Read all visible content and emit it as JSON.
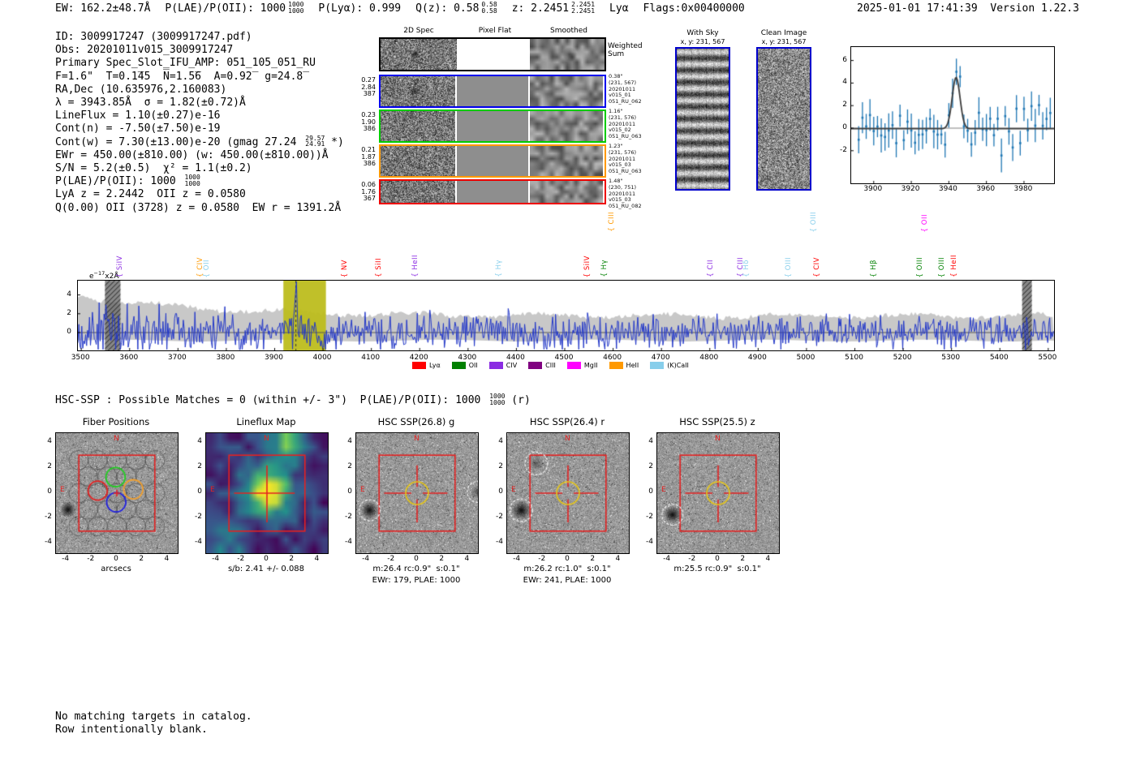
{
  "header": {
    "left_segments": [
      {
        "t": "EW: 162.2±48.7Å"
      },
      {
        "t": "P(LAE)/P(OII): 1000",
        "frac": [
          "1000",
          "1000"
        ]
      },
      {
        "t": "P(Lyα): 0.999"
      },
      {
        "t": "Q(z): 0.58",
        "frac": [
          "0.58",
          "0.58"
        ]
      },
      {
        "t": "z: 2.2451",
        "frac": [
          "2.2451",
          "2.2451"
        ]
      },
      {
        "t": "Lyα"
      },
      {
        "t": "Flags:0x00400000"
      }
    ],
    "datetime": "2025-01-01 17:41:39",
    "version": "Version 1.22.3"
  },
  "info_lines": [
    {
      "text": "ID: 3009917247 (3009917247.pdf)"
    },
    {
      "text": "Obs: 20201011v015_3009917247"
    },
    {
      "text": "Primary Spec_Slot_IFU_AMP: 051_105_051_RU"
    },
    {
      "text": "F=1.6\"  T=0.1̅45  N̅=1.5̅6  A=0.92̅  g=24.8̅"
    },
    {
      "text": "RA,Dec (10.635976,2.160083)"
    },
    {
      "text": "λ = 3943.85Å  σ = 1.82(±0.72)Å"
    },
    {
      "text": "LineFlux = 1.10(±0.27)e-16"
    },
    {
      "text": "Cont(n) = -7.50(±7.50)e-19"
    },
    {
      "pre": "Cont(w) = 7.30(±13.00)e-20 (gmag 27.24 ",
      "hi": "29.57",
      "lo": "24.91",
      "post": " *)"
    },
    {
      "text": "EWr = 450.00(±810.00) (w: 450.00(±810.00))Å"
    },
    {
      "text": "S/N = 5.2(±0.5)  χ² = 1.1(±0.2)"
    },
    {
      "pre": "P(LAE)/P(OII): 1000 ",
      "hi": "1000",
      "lo": "1000",
      "post": ""
    },
    {
      "text": "LyA z = 2.2442  OII z = 0.0580"
    },
    {
      "text": "Q(0.00) OII (3728) z = 0.0580  EW r = 1391.2Å"
    }
  ],
  "spec2d": {
    "col_headers": [
      "2D Spec",
      "Pixel Flat",
      "Smoothed"
    ],
    "weighted_label": [
      "Weighted",
      "Sum"
    ],
    "rows": [
      {
        "border": "#000000",
        "left": [],
        "right": []
      },
      {
        "border": "#0000ee",
        "left": [
          "0.27",
          "2.84",
          "387"
        ],
        "right": [
          "0.38\"",
          "(231, 567)",
          "20201011",
          "v015_01",
          "051_RU_062"
        ]
      },
      {
        "border": "#00cc00",
        "left": [
          "0.23",
          "1.90",
          "386"
        ],
        "right": [
          "1.16\"",
          "(231, 576)",
          "20201011",
          "v015_02",
          "051_RU_063"
        ]
      },
      {
        "border": "#ff9900",
        "left": [
          "0.21",
          "1.87",
          "386"
        ],
        "right": [
          "1.23\"",
          "(231, 576)",
          "20201011",
          "v015_03",
          "051_RU_063"
        ]
      },
      {
        "border": "#ee0000",
        "left": [
          "0.06",
          "1.76",
          "367"
        ],
        "right": [
          "1.48\"",
          "(230, 751)",
          "20201011",
          "v015_03",
          "051_RU_082"
        ]
      }
    ]
  },
  "sky_panels": {
    "with_sky": {
      "title": "With Sky",
      "coords": "x, y: 231, 567"
    },
    "clean": {
      "title": "Clean Image",
      "coords": "x, y: 231, 567"
    }
  },
  "chart_data": [
    {
      "id": "zoom_spectrum",
      "type": "line",
      "title": "",
      "ylabel": {
        "prefix": "e",
        "exp": "−17",
        "suffix": "x2Å"
      },
      "xlim": [
        3888,
        3996
      ],
      "ylim": [
        -4.9,
        7.2
      ],
      "x_ticks": [
        3900,
        3920,
        3940,
        3960,
        3980
      ],
      "y_ticks": [
        6,
        4,
        2,
        0,
        -2
      ],
      "grid": false,
      "series": [
        {
          "name": "flux_errorbar",
          "color": "#1f77b4",
          "note": "noisy flux points ±1σ error bars, baseline ~0, emission spike ~5.0 at 3944"
        },
        {
          "name": "gaussian_fit",
          "color": "#3c3c3c",
          "center": 3943.85,
          "sigma": 1.82,
          "peak": 4.55
        }
      ]
    },
    {
      "id": "full_spectrum",
      "type": "line",
      "title": "",
      "ylabel": {
        "prefix": "e",
        "exp": "−17",
        "suffix": "x2Å"
      },
      "xlim": [
        3493,
        5512
      ],
      "ylim": [
        -1.9,
        5.5
      ],
      "x_ticks": [
        3500,
        3600,
        3700,
        3800,
        3900,
        4000,
        4100,
        4200,
        4300,
        4400,
        4500,
        4600,
        4700,
        4800,
        4900,
        5000,
        5100,
        5200,
        5300,
        5400,
        5500
      ],
      "y_ticks": [
        4,
        2,
        0
      ],
      "emission_line_wavelength": 3943.85,
      "highlight_band": [
        3918,
        4006
      ],
      "masked_bands": [
        [
          3549,
          3581
        ],
        [
          5446,
          5466
        ]
      ],
      "series": [
        {
          "name": "flux",
          "color": "#2338c8",
          "note": "noisy blue spectrum, ±2 envelope, spike to ~5 at 3943.85"
        },
        {
          "name": "noise_envelope",
          "color": "#c8c8c8",
          "note": "gray error envelope, ~4 at 3500 declining to ~1.8"
        }
      ],
      "legend": [
        {
          "label": "Lyα",
          "color": "#ff0000"
        },
        {
          "label": "OII",
          "color": "#008000"
        },
        {
          "label": "CIV",
          "color": "#8a2be2"
        },
        {
          "label": "CIII",
          "color": "#800080"
        },
        {
          "label": "MgII",
          "color": "#ff00ff"
        },
        {
          "label": "HeII",
          "color": "#ff9900"
        },
        {
          "label": "(K)CaII",
          "color": "#87ceeb"
        }
      ],
      "line_labels": [
        {
          "label": "SiIV",
          "color": "#8a2be2",
          "wavelength": 3583,
          "row": 0
        },
        {
          "label": "CIV",
          "color": "#ff9900",
          "wavelength": 3750,
          "row": 0
        },
        {
          "label": "OII",
          "color": "#87ceeb",
          "wavelength": 3764,
          "row": 0
        },
        {
          "label": "NV",
          "color": "#ff0000",
          "wavelength": 4048,
          "row": 0
        },
        {
          "label": "SiII",
          "color": "#ff0000",
          "wavelength": 4119,
          "row": 0
        },
        {
          "label": "HeII",
          "color": "#8a2be2",
          "wavelength": 4195,
          "row": 0
        },
        {
          "label": "Hγ",
          "color": "#87ceeb",
          "wavelength": 4368,
          "row": 0
        },
        {
          "label": "SiIV",
          "color": "#ff0000",
          "wavelength": 4550,
          "row": 0
        },
        {
          "label": "Hγ",
          "color": "#008000",
          "wavelength": 4586,
          "row": 0
        },
        {
          "label": "CIII",
          "color": "#ff9900",
          "wavelength": 4601,
          "row": 1
        },
        {
          "label": "CII",
          "color": "#8a2be2",
          "wavelength": 4806,
          "row": 0
        },
        {
          "label": "CIII",
          "color": "#8a2be2",
          "wavelength": 4868,
          "row": 0
        },
        {
          "label": "Hδ",
          "color": "#87ceeb",
          "wavelength": 4880,
          "row": 0
        },
        {
          "label": "OIII",
          "color": "#87ceeb",
          "wavelength": 4966,
          "row": 0
        },
        {
          "label": "OIII",
          "color": "#87ceeb",
          "wavelength": 5019,
          "row": 1
        },
        {
          "label": "CIV",
          "color": "#ff0000",
          "wavelength": 5026,
          "row": 0
        },
        {
          "label": "Hβ",
          "color": "#008000",
          "wavelength": 5143,
          "row": 0
        },
        {
          "label": "OIII",
          "color": "#008000",
          "wavelength": 5238,
          "row": 0
        },
        {
          "label": "OII",
          "color": "#ff00ff",
          "wavelength": 5248,
          "row": 1
        },
        {
          "label": "OIII",
          "color": "#008000",
          "wavelength": 5284,
          "row": 0
        },
        {
          "label": "HeII",
          "color": "#ff0000",
          "wavelength": 5309,
          "row": 0
        }
      ]
    }
  ],
  "hsc": {
    "header": {
      "pre": "HSC-SSP : Possible Matches = 0 (within +/- 3\")  P(LAE)/P(OII): 1000 ",
      "hi": "1000",
      "lo": "1000",
      "post": " (r)"
    },
    "axis_ticks": [
      -4,
      -2,
      0,
      2,
      4
    ],
    "panels": [
      {
        "title": "Fiber Positions",
        "caption1": "arcsecs",
        "caption2": "",
        "kind": "fiber"
      },
      {
        "title": "Lineflux Map",
        "caption1": "s/b: 2.41 +/- 0.088",
        "caption2": "",
        "kind": "lineflux"
      },
      {
        "title": "HSC SSP(26.8) g",
        "caption1": "m:26.4 rc:0.9\"  s:0.1\"",
        "caption2": "EWr: 179, PLAE: 1000",
        "kind": "cutout_g"
      },
      {
        "title": "HSC SSP(26.4) r",
        "caption1": "m:26.2 rc:1.0\"  s:0.1\"",
        "caption2": "EWr: 241, PLAE: 1000",
        "kind": "cutout_r"
      },
      {
        "title": "HSC SSP(25.5) z",
        "caption1": "m:25.5 rc:0.9\"  s:0.1\"",
        "caption2": "",
        "kind": "cutout_z"
      }
    ],
    "compass": {
      "north": "N",
      "east": "E"
    }
  },
  "footer_lines": [
    "No matching targets in catalog.",
    "Row intentionally blank."
  ],
  "colors": {
    "accent_red": "#e32222",
    "fit_yellow": "#e6c619",
    "band_yellow": "#bdbd1e",
    "spectrum_blue": "#2338c8",
    "point_blue": "#1f77b4",
    "envelope_gray": "#c8c8c8",
    "panel_border_blue": "#0000cc"
  }
}
